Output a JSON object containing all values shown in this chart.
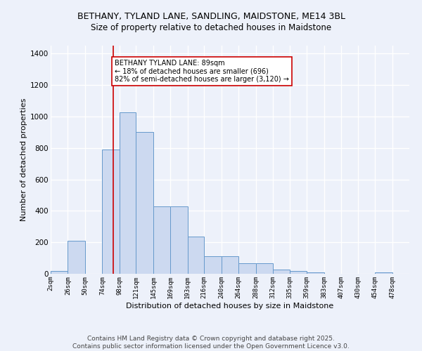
{
  "title": "BETHANY, TYLAND LANE, SANDLING, MAIDSTONE, ME14 3BL",
  "subtitle": "Size of property relative to detached houses in Maidstone",
  "xlabel": "Distribution of detached houses by size in Maidstone",
  "ylabel": "Number of detached properties",
  "bar_edges": [
    2,
    26,
    50,
    74,
    98,
    121,
    145,
    169,
    193,
    216,
    240,
    264,
    288,
    312,
    335,
    359,
    383,
    407,
    430,
    454,
    478
  ],
  "bar_heights": [
    20,
    210,
    0,
    790,
    1025,
    900,
    430,
    430,
    235,
    110,
    110,
    65,
    65,
    25,
    18,
    10,
    0,
    0,
    0,
    10
  ],
  "bar_color": "#ccd9f0",
  "bar_edge_color": "#6699cc",
  "property_line_x": 89,
  "property_line_color": "#cc0000",
  "annotation_text": "BETHANY TYLAND LANE: 89sqm\n← 18% of detached houses are smaller (696)\n82% of semi-detached houses are larger (3,120) →",
  "annotation_box_color": "#ffffff",
  "annotation_box_edge": "#cc0000",
  "ylim": [
    0,
    1450
  ],
  "yticks": [
    0,
    200,
    400,
    600,
    800,
    1000,
    1200,
    1400
  ],
  "xtick_labels": [
    "2sqm",
    "26sqm",
    "50sqm",
    "74sqm",
    "98sqm",
    "121sqm",
    "145sqm",
    "169sqm",
    "193sqm",
    "216sqm",
    "240sqm",
    "264sqm",
    "288sqm",
    "312sqm",
    "335sqm",
    "359sqm",
    "383sqm",
    "407sqm",
    "430sqm",
    "454sqm",
    "478sqm"
  ],
  "background_color": "#edf1fa",
  "grid_color": "#ffffff",
  "footer_line1": "Contains HM Land Registry data © Crown copyright and database right 2025.",
  "footer_line2": "Contains public sector information licensed under the Open Government Licence v3.0.",
  "title_fontsize": 9,
  "subtitle_fontsize": 8.5,
  "xlabel_fontsize": 8,
  "ylabel_fontsize": 8,
  "tick_fontsize": 6.5,
  "footer_fontsize": 6.5
}
